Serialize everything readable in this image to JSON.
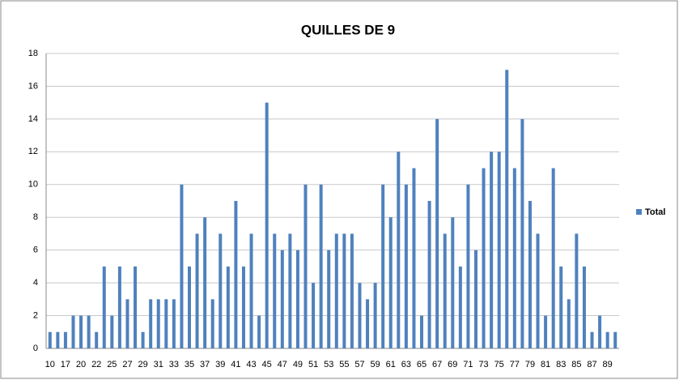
{
  "chart_data": {
    "type": "bar",
    "title": "QUILLES DE 9",
    "categories": [
      "10",
      null,
      "17",
      null,
      "20",
      null,
      "22",
      null,
      "25",
      null,
      "27",
      null,
      "29",
      null,
      "31",
      null,
      "33",
      null,
      "35",
      null,
      "37",
      null,
      "39",
      null,
      "41",
      null,
      "43",
      null,
      "45",
      null,
      "47",
      null,
      "49",
      null,
      "51",
      null,
      "53",
      null,
      "55",
      null,
      "57",
      null,
      "59",
      null,
      "61",
      null,
      "63",
      null,
      "65",
      null,
      "67",
      null,
      "69",
      null,
      "71",
      null,
      "73",
      null,
      "75",
      null,
      "77",
      null,
      "79",
      null,
      "81",
      null,
      "83",
      null,
      "85",
      null,
      "87",
      null,
      "89",
      null
    ],
    "series": [
      {
        "name": "Total",
        "color": "#4f81bd",
        "values": [
          1,
          1,
          1,
          2,
          2,
          2,
          1,
          5,
          2,
          5,
          3,
          5,
          1,
          3,
          3,
          3,
          3,
          10,
          5,
          7,
          8,
          3,
          7,
          5,
          9,
          5,
          7,
          2,
          15,
          7,
          6,
          7,
          6,
          10,
          4,
          10,
          6,
          7,
          7,
          7,
          4,
          3,
          4,
          10,
          8,
          12,
          10,
          11,
          2,
          9,
          14,
          7,
          8,
          5,
          10,
          6,
          11,
          12,
          12,
          17,
          11,
          14,
          9,
          7,
          2,
          11,
          5,
          3,
          7,
          5,
          1,
          2,
          1,
          1
        ]
      }
    ],
    "ylim": [
      0,
      18
    ],
    "yticks": [
      0,
      2,
      4,
      6,
      8,
      10,
      12,
      14,
      16,
      18
    ],
    "grid": true,
    "legend": "right"
  }
}
